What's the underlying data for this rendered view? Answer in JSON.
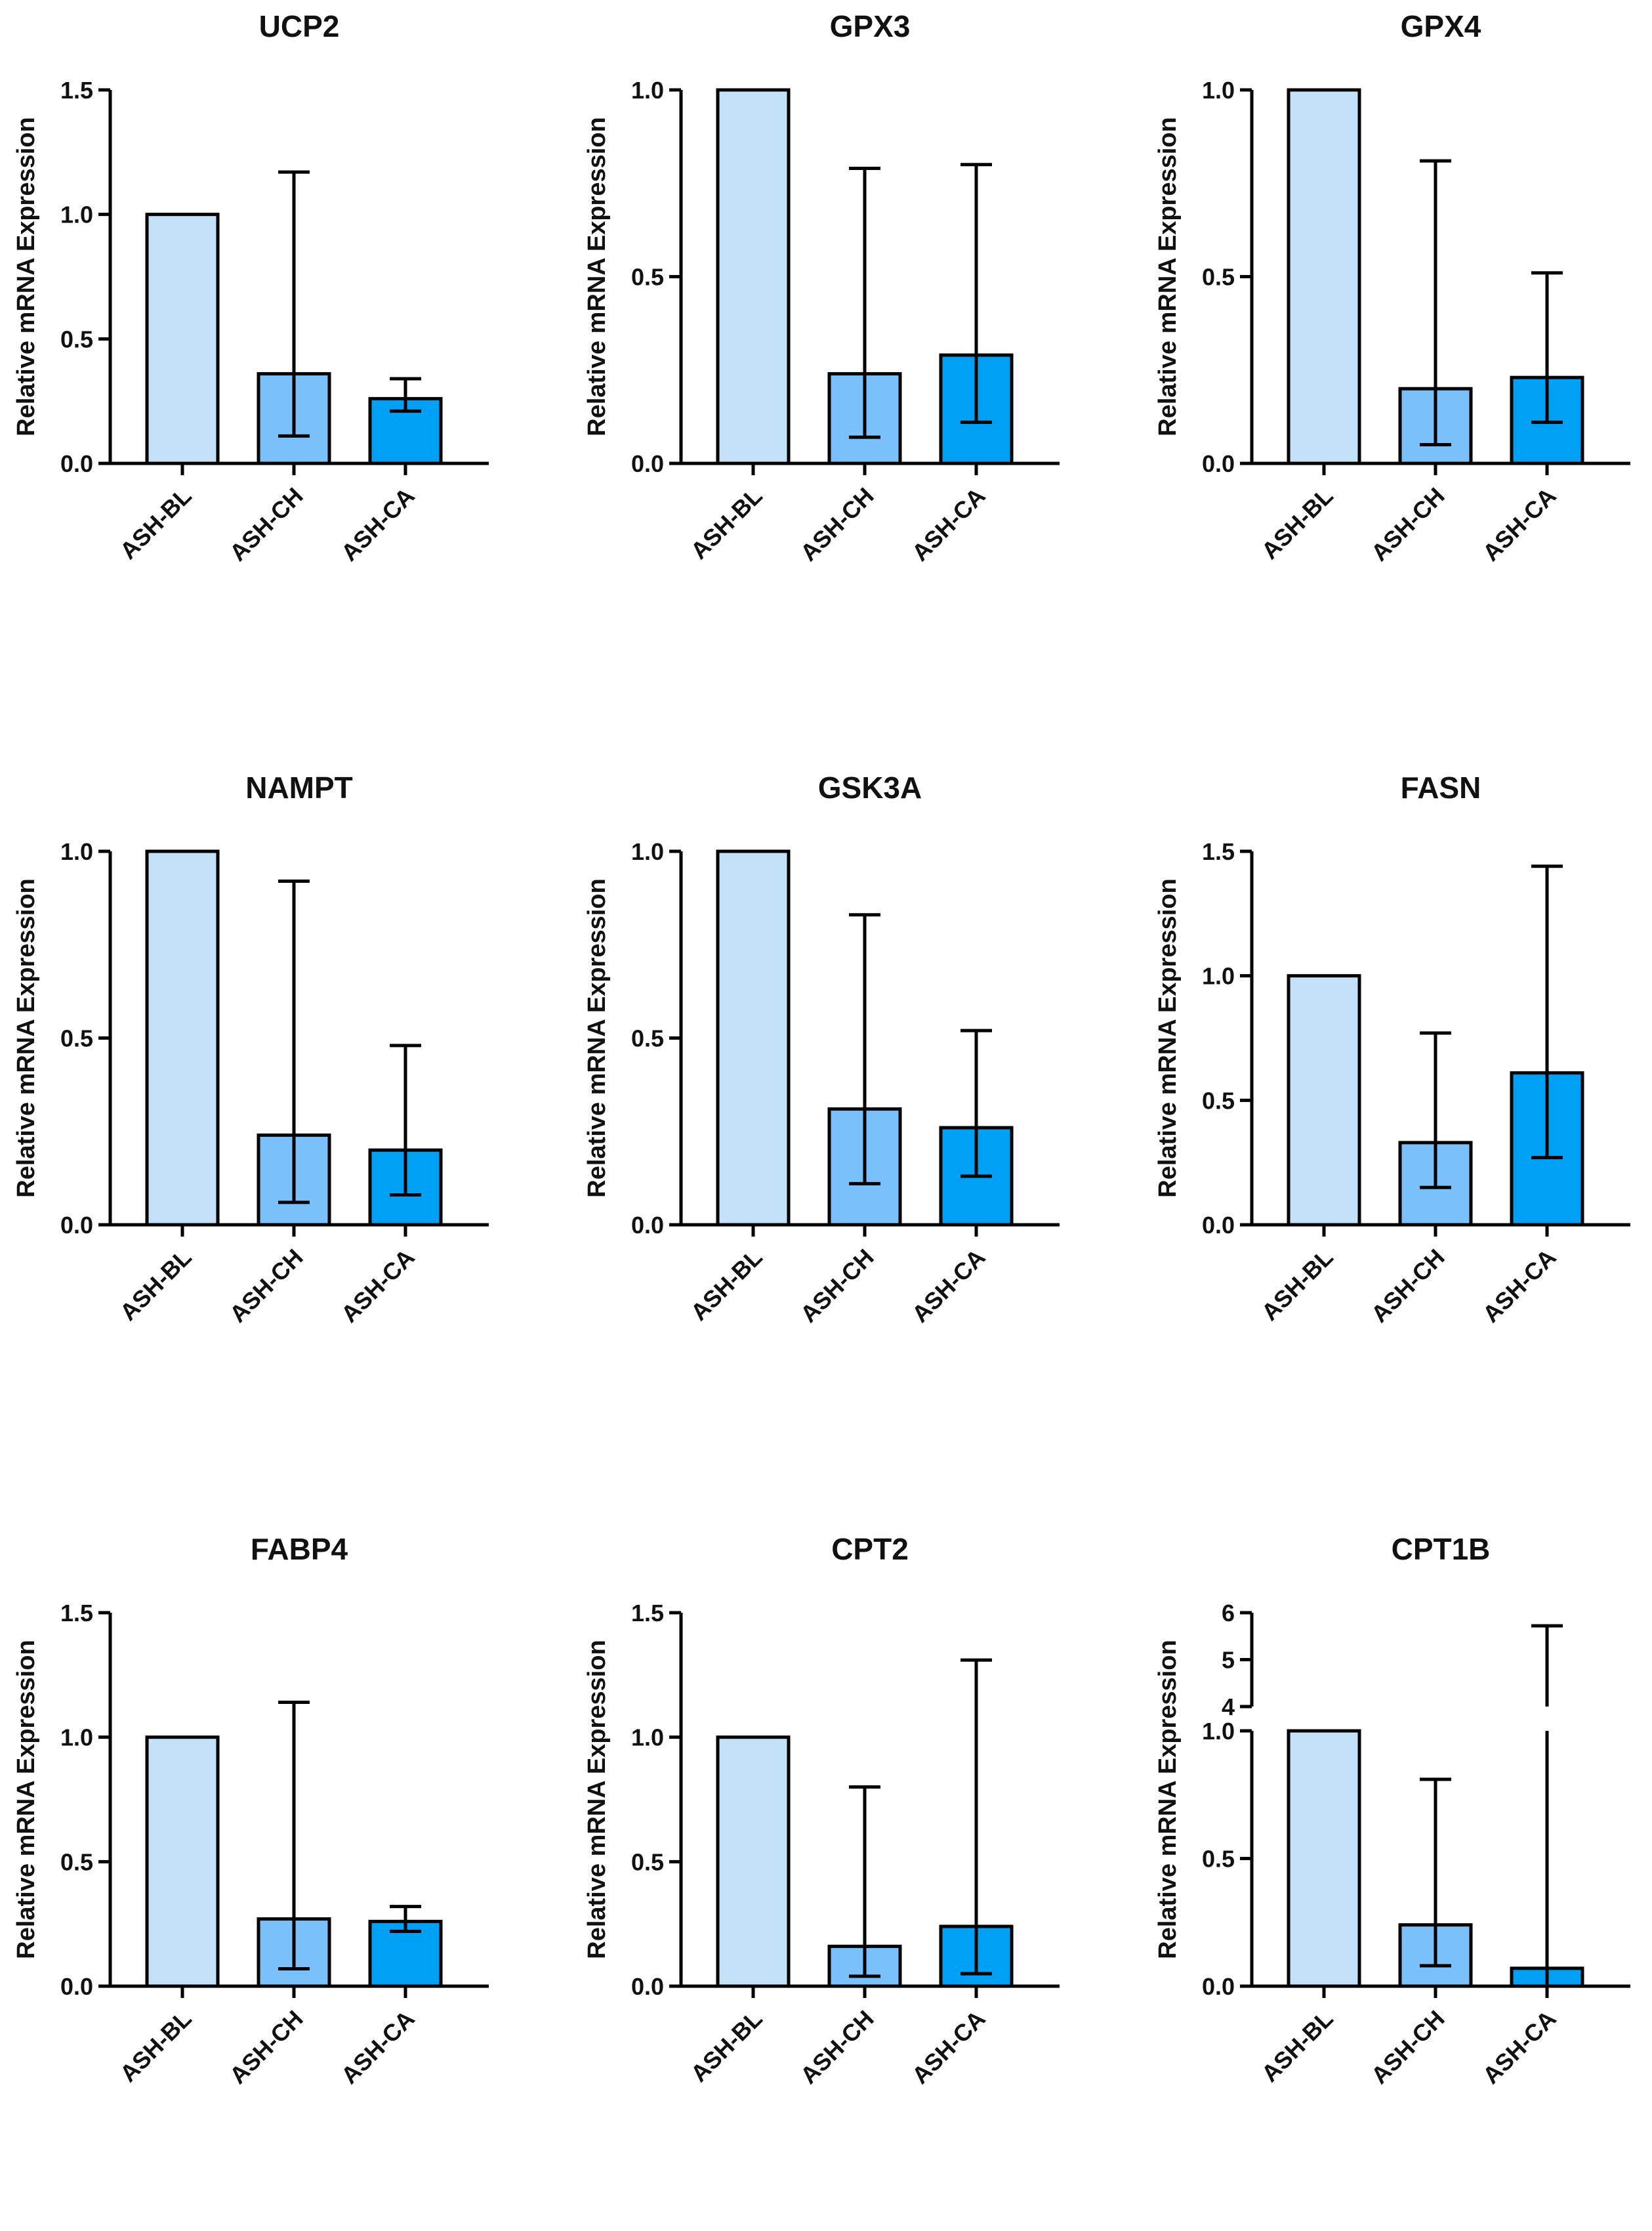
{
  "colors": {
    "bl": "#c3e1f8",
    "ch": "#7ac1fb",
    "ca": "#00a0f4",
    "axis": "#000000"
  },
  "chart_data": [
    {
      "type": "bar",
      "title": "UCP2",
      "ylabel": "Relative mRNA Expression",
      "categories": [
        "ASH-BL",
        "ASH-CH",
        "ASH-CA"
      ],
      "values": [
        1.0,
        0.36,
        0.26
      ],
      "error_low": [
        1.0,
        0.11,
        0.21
      ],
      "error_high": [
        1.0,
        1.17,
        0.34
      ],
      "ylim": [
        0,
        1.5
      ],
      "yticks": [
        0,
        0.5,
        1.0,
        1.5
      ],
      "ytick_labels": [
        "0.0",
        "0.5",
        "1.0",
        "1.5"
      ]
    },
    {
      "type": "bar",
      "title": "GPX3",
      "ylabel": "Relative mRNA Expression",
      "categories": [
        "ASH-BL",
        "ASH-CH",
        "ASH-CA"
      ],
      "values": [
        1.0,
        0.24,
        0.29
      ],
      "error_low": [
        1.0,
        0.07,
        0.11
      ],
      "error_high": [
        1.0,
        0.79,
        0.8
      ],
      "ylim": [
        0,
        1.0
      ],
      "yticks": [
        0,
        0.5,
        1.0
      ],
      "ytick_labels": [
        "0.0",
        "0.5",
        "1.0"
      ]
    },
    {
      "type": "bar",
      "title": "GPX4",
      "ylabel": "Relative mRNA Expression",
      "categories": [
        "ASH-BL",
        "ASH-CH",
        "ASH-CA"
      ],
      "values": [
        1.0,
        0.2,
        0.23
      ],
      "error_low": [
        1.0,
        0.05,
        0.11
      ],
      "error_high": [
        1.0,
        0.81,
        0.51
      ],
      "ylim": [
        0,
        1.0
      ],
      "yticks": [
        0,
        0.5,
        1.0
      ],
      "ytick_labels": [
        "0.0",
        "0.5",
        "1.0"
      ]
    },
    {
      "type": "bar",
      "title": "NAMPT",
      "ylabel": "Relative mRNA Expression",
      "categories": [
        "ASH-BL",
        "ASH-CH",
        "ASH-CA"
      ],
      "values": [
        1.0,
        0.24,
        0.2
      ],
      "error_low": [
        1.0,
        0.06,
        0.08
      ],
      "error_high": [
        1.0,
        0.92,
        0.48
      ],
      "ylim": [
        0,
        1.0
      ],
      "yticks": [
        0,
        0.5,
        1.0
      ],
      "ytick_labels": [
        "0.0",
        "0.5",
        "1.0"
      ]
    },
    {
      "type": "bar",
      "title": "GSK3A",
      "ylabel": "Relative mRNA Expression",
      "categories": [
        "ASH-BL",
        "ASH-CH",
        "ASH-CA"
      ],
      "values": [
        1.0,
        0.31,
        0.26
      ],
      "error_low": [
        1.0,
        0.11,
        0.13
      ],
      "error_high": [
        1.0,
        0.83,
        0.52
      ],
      "ylim": [
        0,
        1.0
      ],
      "yticks": [
        0,
        0.5,
        1.0
      ],
      "ytick_labels": [
        "0.0",
        "0.5",
        "1.0"
      ]
    },
    {
      "type": "bar",
      "title": "FASN",
      "ylabel": "Relative mRNA Expression",
      "categories": [
        "ASH-BL",
        "ASH-CH",
        "ASH-CA"
      ],
      "values": [
        1.0,
        0.33,
        0.61
      ],
      "error_low": [
        1.0,
        0.15,
        0.27
      ],
      "error_high": [
        1.0,
        0.77,
        1.44
      ],
      "ylim": [
        0,
        1.5
      ],
      "yticks": [
        0,
        0.5,
        1.0,
        1.5
      ],
      "ytick_labels": [
        "0.0",
        "0.5",
        "1.0",
        "1.5"
      ]
    },
    {
      "type": "bar",
      "title": "FABP4",
      "ylabel": "Relative mRNA Expression",
      "categories": [
        "ASH-BL",
        "ASH-CH",
        "ASH-CA"
      ],
      "values": [
        1.0,
        0.27,
        0.26
      ],
      "error_low": [
        1.0,
        0.07,
        0.22
      ],
      "error_high": [
        1.0,
        1.14,
        0.32
      ],
      "ylim": [
        0,
        1.5
      ],
      "yticks": [
        0,
        0.5,
        1.0,
        1.5
      ],
      "ytick_labels": [
        "0.0",
        "0.5",
        "1.0",
        "1.5"
      ]
    },
    {
      "type": "bar",
      "title": "CPT2",
      "ylabel": "Relative mRNA Expression",
      "categories": [
        "ASH-BL",
        "ASH-CH",
        "ASH-CA"
      ],
      "values": [
        1.0,
        0.16,
        0.24
      ],
      "error_low": [
        1.0,
        0.04,
        0.05
      ],
      "error_high": [
        1.0,
        0.8,
        1.31
      ],
      "ylim": [
        0,
        1.5
      ],
      "yticks": [
        0,
        0.5,
        1.0,
        1.5
      ],
      "ytick_labels": [
        "0.0",
        "0.5",
        "1.0",
        "1.5"
      ]
    },
    {
      "type": "bar",
      "title": "CPT1B",
      "ylabel": "Relative mRNA Expression",
      "categories": [
        "ASH-BL",
        "ASH-CH",
        "ASH-CA"
      ],
      "values": [
        1.0,
        0.24,
        0.07
      ],
      "error_low": [
        1.0,
        0.08,
        0.0
      ],
      "error_high": [
        1.0,
        0.81,
        5.72
      ],
      "ylim": [
        0,
        6
      ],
      "axis_break": [
        1.0,
        4.0
      ],
      "yticks": [
        0,
        0.5,
        1.0,
        4,
        5,
        6
      ],
      "ytick_labels": [
        "0.0",
        "0.5",
        "1.0",
        "4",
        "5",
        "6"
      ]
    }
  ]
}
